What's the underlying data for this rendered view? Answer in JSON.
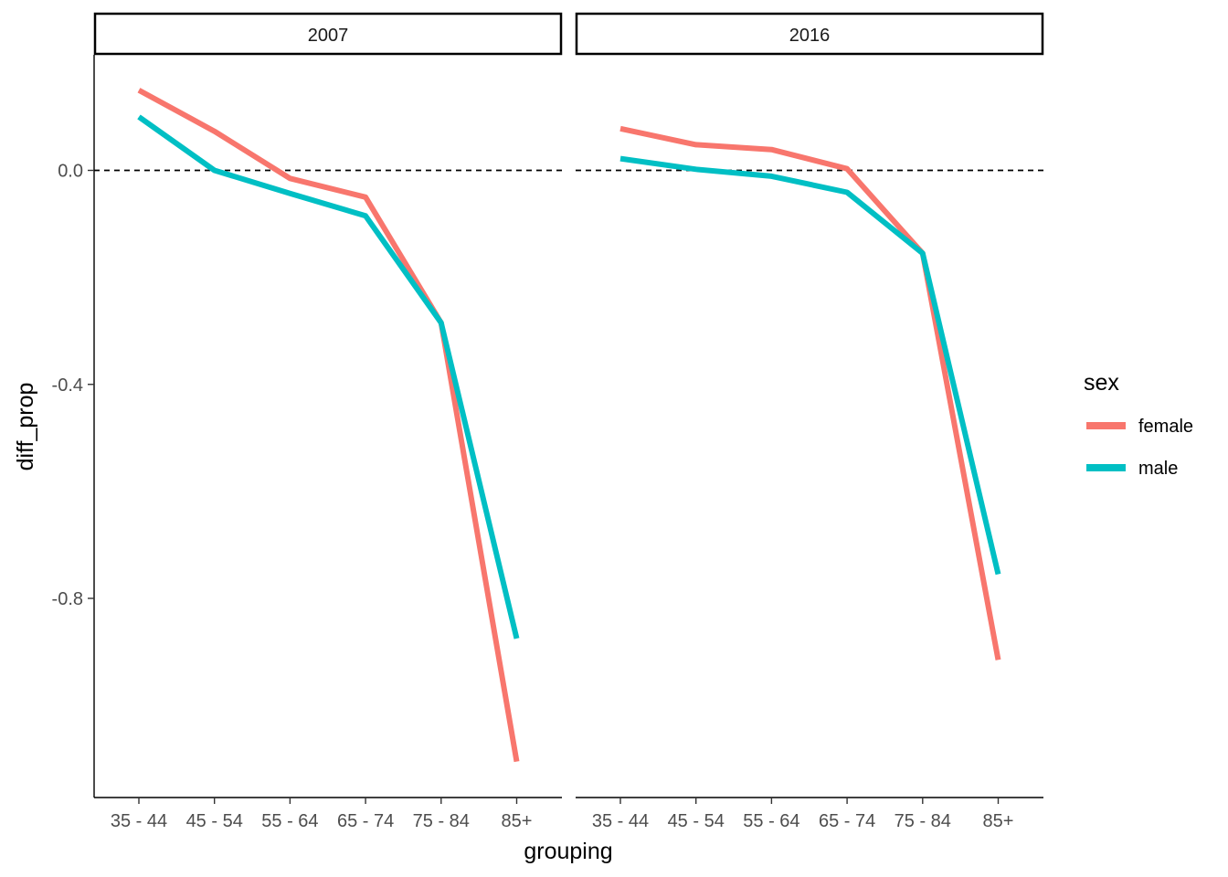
{
  "chart_data": {
    "type": "line",
    "facet_variable": "year",
    "xlabel": "grouping",
    "ylabel": "diff_prop",
    "categories": [
      "35 - 44",
      "45 - 54",
      "55 - 64",
      "65 - 74",
      "75 - 84",
      "85+"
    ],
    "y_ticks": [
      0.0,
      -0.4,
      -0.8
    ],
    "y_tick_labels": [
      "0.0",
      "-0.4",
      "-0.8"
    ],
    "ylim": [
      -1.2,
      0.22
    ],
    "reference_line": {
      "y": 0,
      "style": "dashed",
      "color": "#000000"
    },
    "grid": false,
    "legend": {
      "title": "sex",
      "position": "right",
      "entries": [
        {
          "label": "female",
          "color": "#F8766D"
        },
        {
          "label": "male",
          "color": "#00BFC4"
        }
      ]
    },
    "panels": [
      {
        "strip_label": "2007",
        "series": [
          {
            "name": "female",
            "color": "#F8766D",
            "values": [
              0.15,
              0.073,
              -0.015,
              -0.05,
              -0.285,
              -1.105
            ]
          },
          {
            "name": "male",
            "color": "#00BFC4",
            "values": [
              0.1,
              0.0,
              -0.043,
              -0.085,
              -0.285,
              -0.875
            ]
          }
        ]
      },
      {
        "strip_label": "2016",
        "series": [
          {
            "name": "female",
            "color": "#F8766D",
            "values": [
              0.078,
              0.048,
              0.039,
              0.003,
              -0.155,
              -0.915
            ]
          },
          {
            "name": "male",
            "color": "#00BFC4",
            "values": [
              0.022,
              0.002,
              -0.011,
              -0.041,
              -0.155,
              -0.755
            ]
          }
        ]
      }
    ]
  }
}
